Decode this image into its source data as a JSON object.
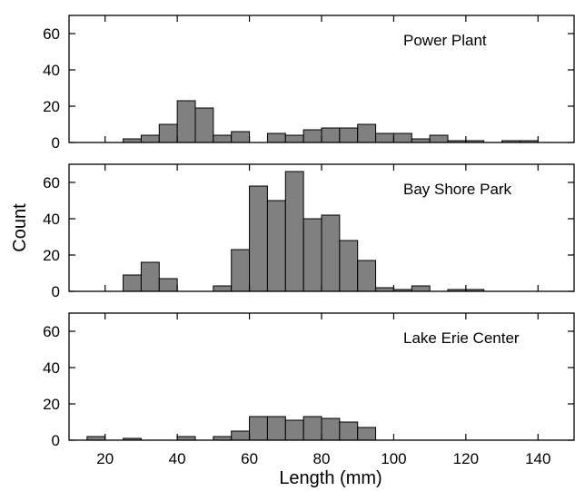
{
  "chart_data": {
    "type": "bar",
    "xlabel": "Length (mm)",
    "ylabel": "Count",
    "xlim": [
      10,
      150
    ],
    "ylim": [
      0,
      70
    ],
    "bin_width": 5,
    "x_tick_values": [
      20,
      40,
      60,
      80,
      100,
      120,
      140
    ],
    "x_tick_labels": [
      "20",
      "40",
      "60",
      "80",
      "100",
      "120",
      "140"
    ],
    "y_tick_values": [
      0,
      20,
      40,
      60
    ],
    "y_tick_labels": [
      "0",
      "20",
      "40",
      "60"
    ],
    "panels": [
      {
        "label": "Power Plant",
        "bins": [
          {
            "x0": 25,
            "count": 2
          },
          {
            "x0": 30,
            "count": 4
          },
          {
            "x0": 35,
            "count": 10
          },
          {
            "x0": 40,
            "count": 23
          },
          {
            "x0": 45,
            "count": 19
          },
          {
            "x0": 50,
            "count": 4
          },
          {
            "x0": 55,
            "count": 6
          },
          {
            "x0": 60,
            "count": 0
          },
          {
            "x0": 65,
            "count": 5
          },
          {
            "x0": 70,
            "count": 4
          },
          {
            "x0": 75,
            "count": 7
          },
          {
            "x0": 80,
            "count": 8
          },
          {
            "x0": 85,
            "count": 8
          },
          {
            "x0": 90,
            "count": 10
          },
          {
            "x0": 95,
            "count": 5
          },
          {
            "x0": 100,
            "count": 5
          },
          {
            "x0": 105,
            "count": 2
          },
          {
            "x0": 110,
            "count": 4
          },
          {
            "x0": 115,
            "count": 1
          },
          {
            "x0": 120,
            "count": 1
          },
          {
            "x0": 125,
            "count": 0
          },
          {
            "x0": 130,
            "count": 1
          },
          {
            "x0": 135,
            "count": 1
          }
        ]
      },
      {
        "label": "Bay Shore Park",
        "bins": [
          {
            "x0": 25,
            "count": 9
          },
          {
            "x0": 30,
            "count": 16
          },
          {
            "x0": 35,
            "count": 7
          },
          {
            "x0": 40,
            "count": 0
          },
          {
            "x0": 45,
            "count": 0
          },
          {
            "x0": 50,
            "count": 3
          },
          {
            "x0": 55,
            "count": 23
          },
          {
            "x0": 60,
            "count": 58
          },
          {
            "x0": 65,
            "count": 50
          },
          {
            "x0": 70,
            "count": 66
          },
          {
            "x0": 75,
            "count": 40
          },
          {
            "x0": 80,
            "count": 42
          },
          {
            "x0": 85,
            "count": 28
          },
          {
            "x0": 90,
            "count": 17
          },
          {
            "x0": 95,
            "count": 2
          },
          {
            "x0": 100,
            "count": 1
          },
          {
            "x0": 105,
            "count": 3
          },
          {
            "x0": 110,
            "count": 0
          },
          {
            "x0": 115,
            "count": 1
          },
          {
            "x0": 120,
            "count": 1
          }
        ]
      },
      {
        "label": "Lake Erie Center",
        "bins": [
          {
            "x0": 15,
            "count": 2
          },
          {
            "x0": 20,
            "count": 0
          },
          {
            "x0": 25,
            "count": 1
          },
          {
            "x0": 30,
            "count": 0
          },
          {
            "x0": 35,
            "count": 0
          },
          {
            "x0": 40,
            "count": 2
          },
          {
            "x0": 45,
            "count": 0
          },
          {
            "x0": 50,
            "count": 2
          },
          {
            "x0": 55,
            "count": 5
          },
          {
            "x0": 60,
            "count": 13
          },
          {
            "x0": 65,
            "count": 13
          },
          {
            "x0": 70,
            "count": 11
          },
          {
            "x0": 75,
            "count": 13
          },
          {
            "x0": 80,
            "count": 12
          },
          {
            "x0": 85,
            "count": 10
          },
          {
            "x0": 90,
            "count": 7
          }
        ]
      }
    ],
    "bar_color": "#808080",
    "grid": false
  }
}
